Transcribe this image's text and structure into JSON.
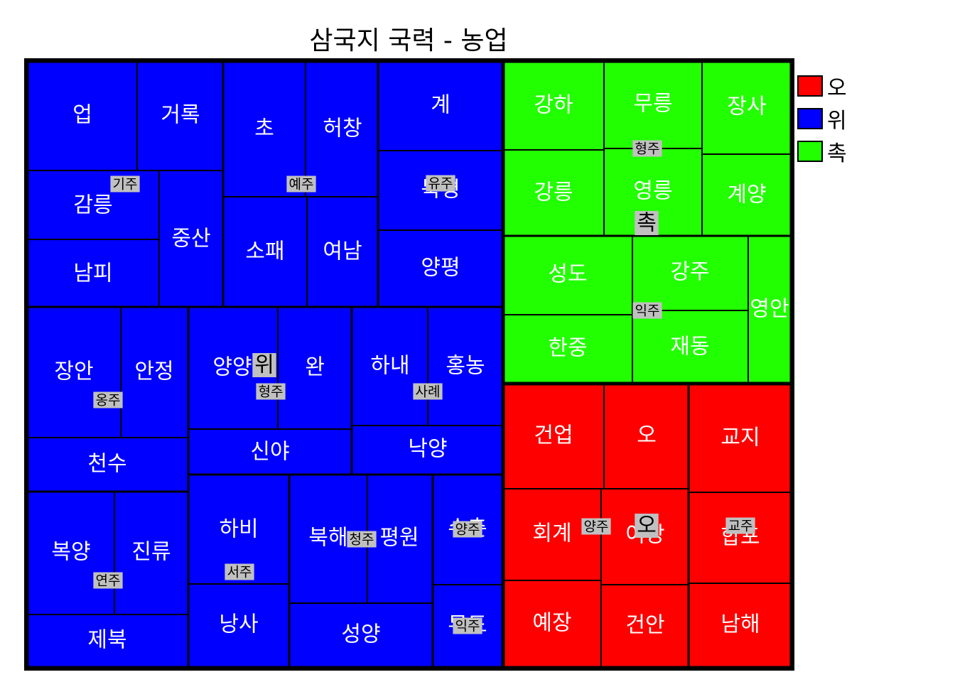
{
  "chart_data": {
    "type": "treemap",
    "title": "삼국지 국력 - 농업",
    "legend": [
      {
        "name": "오",
        "color": "#ff0000"
      },
      {
        "name": "위",
        "color": "#0000ff"
      },
      {
        "name": "촉",
        "color": "#22ff00"
      }
    ],
    "kingdoms": [
      {
        "name": "위",
        "color": "#0000ff",
        "label_pos": [
          372,
          514
        ]
      },
      {
        "name": "촉",
        "color": "#22ff00",
        "label_pos": [
          910,
          314
        ]
      },
      {
        "name": "오",
        "color": "#ff0000",
        "label_pos": [
          910,
          740
        ]
      }
    ]
  }
}
